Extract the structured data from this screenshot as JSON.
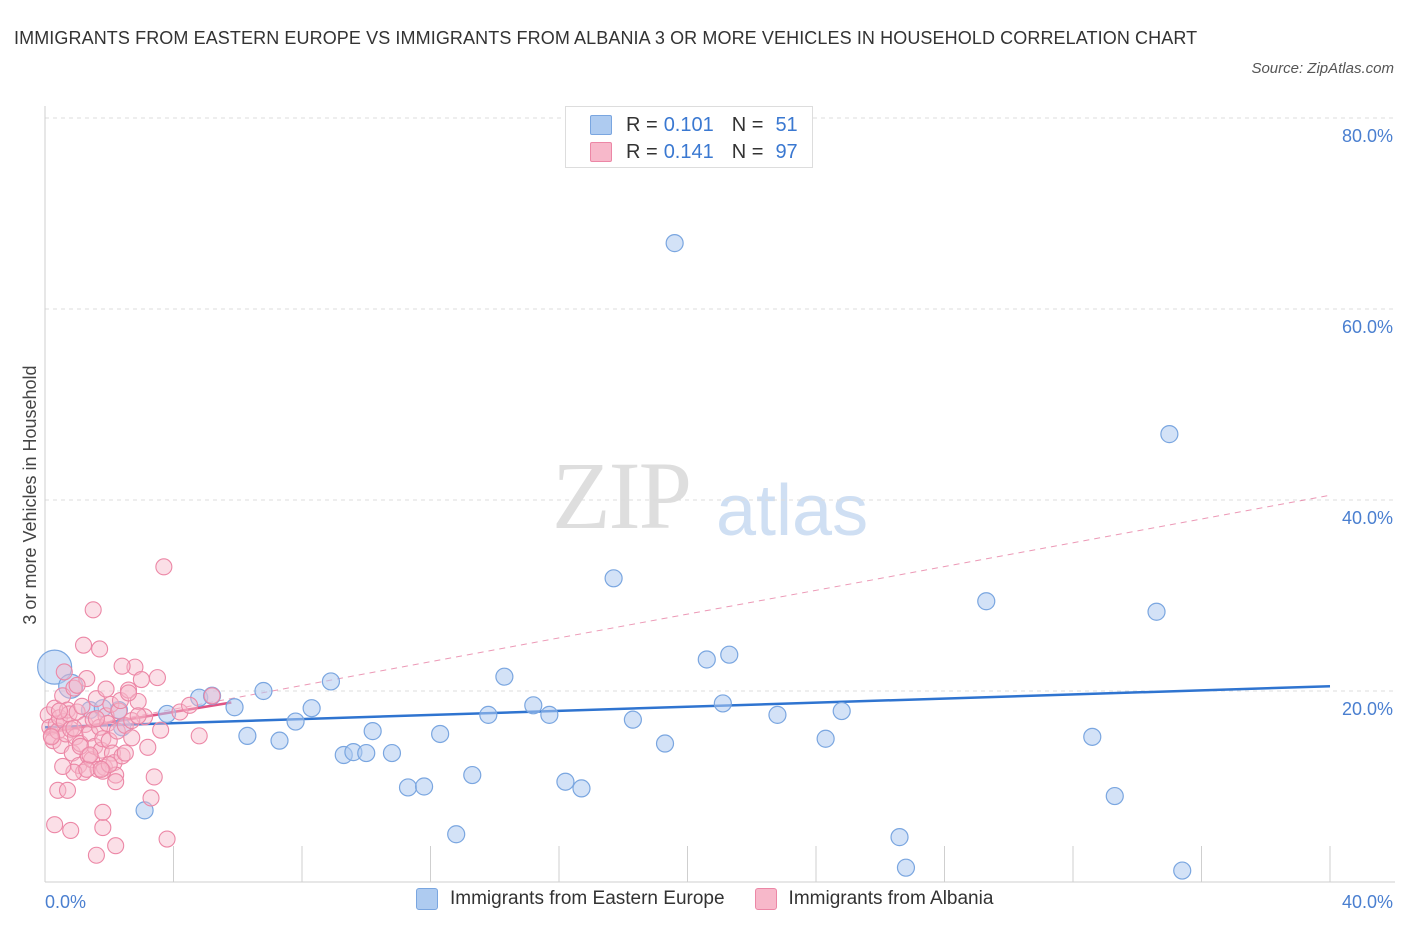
{
  "title": "IMMIGRANTS FROM EASTERN EUROPE VS IMMIGRANTS FROM ALBANIA 3 OR MORE VEHICLES IN HOUSEHOLD CORRELATION CHART",
  "source": "Source: ZipAtlas.com",
  "watermark": {
    "zip": "ZIP",
    "atlas": "atlas"
  },
  "legend": {
    "rows": [
      {
        "r_label": "R =",
        "r_value": "0.101",
        "n_label": "N =",
        "n_value": "51",
        "color": "#aecbf0"
      },
      {
        "r_label": "R =",
        "r_value": "0.141",
        "n_label": "N =",
        "n_value": "97",
        "color": "#f7b8ca"
      }
    ]
  },
  "bottom_legend": [
    "Immigrants from Eastern Europe",
    "Immigrants from Albania"
  ],
  "colors": {
    "blue_fill": "#aecbf0",
    "blue_stroke": "#7aa6e0",
    "blue_line": "#2f74d0",
    "pink_fill": "#f7b8ca",
    "pink_stroke": "#ec87a6",
    "pink_line": "#e05585",
    "tick": "#4a7fd0"
  },
  "chart_data": {
    "type": "scatter",
    "xlabel": "",
    "ylabel": "3 or more Vehicles in Household",
    "xlim": [
      0,
      40
    ],
    "ylim": [
      0,
      80
    ],
    "x_tick_labels": [
      "0.0%",
      "40.0%"
    ],
    "y_tick_labels": [
      "20.0%",
      "40.0%",
      "60.0%",
      "80.0%"
    ],
    "y_ticks": [
      20,
      40,
      60,
      80
    ],
    "grid": true,
    "legend_position": "top-center",
    "series": [
      {
        "name": "Immigrants from Eastern Europe",
        "color": "#aecbf0",
        "points": [
          [
            0.3,
            22.5
          ],
          [
            0.8,
            20.5
          ],
          [
            1.4,
            18
          ],
          [
            2.3,
            18
          ],
          [
            2.4,
            16.2
          ],
          [
            3.8,
            17.6
          ],
          [
            4.8,
            19.3
          ],
          [
            5.2,
            19.5
          ],
          [
            5.9,
            18.3
          ],
          [
            6.3,
            15.3
          ],
          [
            6.8,
            20
          ],
          [
            7.3,
            14.8
          ],
          [
            7.8,
            16.8
          ],
          [
            8.3,
            18.2
          ],
          [
            8.9,
            21
          ],
          [
            9.3,
            13.3
          ],
          [
            9.6,
            13.6
          ],
          [
            10,
            13.5
          ],
          [
            10.2,
            15.8
          ],
          [
            10.8,
            13.5
          ],
          [
            11.3,
            9.9
          ],
          [
            11.8,
            10
          ],
          [
            12.3,
            15.5
          ],
          [
            12.8,
            5
          ],
          [
            13.3,
            11.2
          ],
          [
            13.8,
            17.5
          ],
          [
            14.3,
            21.5
          ],
          [
            15.2,
            18.5
          ],
          [
            15.7,
            17.5
          ],
          [
            16.2,
            10.5
          ],
          [
            16.7,
            9.8
          ],
          [
            17.7,
            31.8
          ],
          [
            18.3,
            17
          ],
          [
            19.3,
            14.5
          ],
          [
            19.6,
            66.9
          ],
          [
            20.6,
            23.3
          ],
          [
            21.1,
            18.7
          ],
          [
            21.3,
            23.8
          ],
          [
            22.8,
            17.5
          ],
          [
            24.3,
            15
          ],
          [
            24.8,
            17.9
          ],
          [
            26.6,
            4.7
          ],
          [
            26.8,
            1.5
          ],
          [
            29.3,
            29.4
          ],
          [
            32.6,
            15.2
          ],
          [
            33.3,
            9
          ],
          [
            34.6,
            28.3
          ],
          [
            35,
            46.9
          ],
          [
            35.4,
            1.2
          ],
          [
            1.8,
            18.2
          ],
          [
            3.1,
            7.5
          ]
        ],
        "trend": {
          "x": [
            0,
            40
          ],
          "y": [
            16.2,
            20.5
          ]
        }
      },
      {
        "name": "Immigrants from Albania",
        "color": "#f7b8ca",
        "points": [
          [
            0.1,
            17.5
          ],
          [
            0.15,
            16.2
          ],
          [
            0.2,
            15.3
          ],
          [
            0.25,
            14.8
          ],
          [
            0.3,
            18.2
          ],
          [
            0.35,
            16.5
          ],
          [
            0.4,
            15.8
          ],
          [
            0.45,
            17.2
          ],
          [
            0.5,
            14.3
          ],
          [
            0.55,
            19.5
          ],
          [
            0.6,
            16.8
          ],
          [
            0.65,
            15.5
          ],
          [
            0.7,
            18
          ],
          [
            0.75,
            17.6
          ],
          [
            0.8,
            16
          ],
          [
            0.85,
            13.5
          ],
          [
            0.9,
            20.3
          ],
          [
            0.95,
            15.2
          ],
          [
            1,
            17.8
          ],
          [
            1.05,
            12.2
          ],
          [
            1.1,
            14.5
          ],
          [
            1.15,
            18.4
          ],
          [
            1.2,
            11.5
          ],
          [
            1.25,
            16.5
          ],
          [
            1.3,
            21.3
          ],
          [
            1.35,
            13.2
          ],
          [
            1.4,
            15.6
          ],
          [
            1.45,
            12.8
          ],
          [
            1.5,
            17
          ],
          [
            1.55,
            14.2
          ],
          [
            1.6,
            19.2
          ],
          [
            1.65,
            11.8
          ],
          [
            1.7,
            16.2
          ],
          [
            1.75,
            13.8
          ],
          [
            1.8,
            15
          ],
          [
            1.85,
            12
          ],
          [
            1.9,
            17.4
          ],
          [
            1.95,
            16.6
          ],
          [
            2,
            14.8
          ],
          [
            2.05,
            18.6
          ],
          [
            2.1,
            13.5
          ],
          [
            2.15,
            12.5
          ],
          [
            2.2,
            11.2
          ],
          [
            2.25,
            15.8
          ],
          [
            2.3,
            17.9
          ],
          [
            2.35,
            19
          ],
          [
            2.4,
            13.2
          ],
          [
            2.5,
            16.4
          ],
          [
            2.6,
            20.1
          ],
          [
            2.7,
            15.1
          ],
          [
            2.8,
            22.5
          ],
          [
            2.9,
            18.9
          ],
          [
            3,
            21.2
          ],
          [
            3.1,
            17.3
          ],
          [
            3.2,
            14.1
          ],
          [
            3.3,
            8.8
          ],
          [
            3.4,
            11
          ],
          [
            3.5,
            21.4
          ],
          [
            3.6,
            15.9
          ],
          [
            3.7,
            33
          ],
          [
            3.8,
            4.5
          ],
          [
            4.2,
            17.8
          ],
          [
            4.5,
            18.5
          ],
          [
            4.8,
            15.3
          ],
          [
            5.2,
            19.5
          ],
          [
            1.5,
            28.5
          ],
          [
            1.7,
            24.4
          ],
          [
            2.4,
            22.6
          ],
          [
            1.2,
            24.8
          ],
          [
            0.6,
            22
          ],
          [
            1.9,
            20.2
          ],
          [
            0.3,
            6
          ],
          [
            0.8,
            5.4
          ],
          [
            1.8,
            5.7
          ],
          [
            1.6,
            2.8
          ],
          [
            2.2,
            3.8
          ],
          [
            1.8,
            7.3
          ],
          [
            0.4,
            9.6
          ],
          [
            0.7,
            9.6
          ],
          [
            2.2,
            10.5
          ],
          [
            0.9,
            11.5
          ],
          [
            1.3,
            11.8
          ],
          [
            1.8,
            11.6
          ],
          [
            2.5,
            13.5
          ],
          [
            1.1,
            14.2
          ],
          [
            1.4,
            13.3
          ],
          [
            2.7,
            16.9
          ],
          [
            0.2,
            15.2
          ],
          [
            2.0,
            12.3
          ],
          [
            1.6,
            17.1
          ],
          [
            0.55,
            12.1
          ],
          [
            0.9,
            16.1
          ],
          [
            1.75,
            11.8
          ],
          [
            2.9,
            17.4
          ],
          [
            0.45,
            17.9
          ],
          [
            2.6,
            19.8
          ],
          [
            1.0,
            20.6
          ]
        ],
        "trend": {
          "x": [
            0,
            5.8
          ],
          "y": [
            15.6,
            18.8
          ]
        },
        "trend_extended": {
          "x": [
            0,
            40
          ],
          "y": [
            15.6,
            40.5
          ]
        }
      }
    ]
  }
}
